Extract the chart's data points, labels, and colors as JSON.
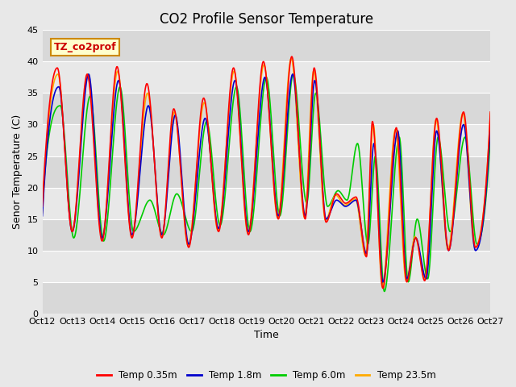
{
  "title": "CO2 Profile Sensor Temperature",
  "ylabel": "Senor Temperature (C)",
  "xlabel": "Time",
  "annotation_text": "TZ_co2prof",
  "annotation_bg": "#ffffcc",
  "annotation_border": "#cc8800",
  "ylim": [
    0,
    45
  ],
  "yticks": [
    0,
    5,
    10,
    15,
    20,
    25,
    30,
    35,
    40,
    45
  ],
  "xtick_labels": [
    "Oct 12",
    "Oct 13",
    "Oct 14",
    "Oct 15",
    "Oct 16",
    "Oct 17",
    "Oct 18",
    "Oct 19",
    "Oct 20",
    "Oct 21",
    "Oct 22",
    "Oct 23",
    "Oct 24",
    "Oct 25",
    "Oct 26",
    "Oct 27"
  ],
  "series_colors": [
    "#ff0000",
    "#0000cc",
    "#00cc00",
    "#ffaa00"
  ],
  "series_labels": [
    "Temp 0.35m",
    "Temp 1.8m",
    "Temp 6.0m",
    "Temp 23.5m"
  ],
  "bg_color": "#e8e8e8",
  "title_fontsize": 12,
  "label_fontsize": 9,
  "tick_fontsize": 8,
  "peaks_red": [
    0.5,
    1.5,
    2.5,
    3.5,
    4.4,
    5.4,
    6.4,
    7.4,
    8.4,
    9.3,
    10.2,
    11.05,
    11.9,
    13.4,
    14.4,
    15.0
  ],
  "peak_vals_red": [
    39,
    38,
    39.2,
    36.5,
    32.5,
    34.2,
    39,
    40,
    41,
    38.5,
    19,
    30.5,
    29.5,
    31,
    32,
    32
  ],
  "troughs_red": [
    0.0,
    1.0,
    2.0,
    3.0,
    4.0,
    5.0,
    6.0,
    7.0,
    8.0,
    9.0,
    10.0,
    11.4,
    12.5,
    13.0,
    14.0,
    15.0
  ],
  "trough_vals_red": [
    17,
    13,
    11.5,
    12,
    12,
    10.5,
    13,
    12.5,
    15,
    14.5,
    18.5,
    9,
    4,
    10,
    10.5,
    10.5
  ]
}
